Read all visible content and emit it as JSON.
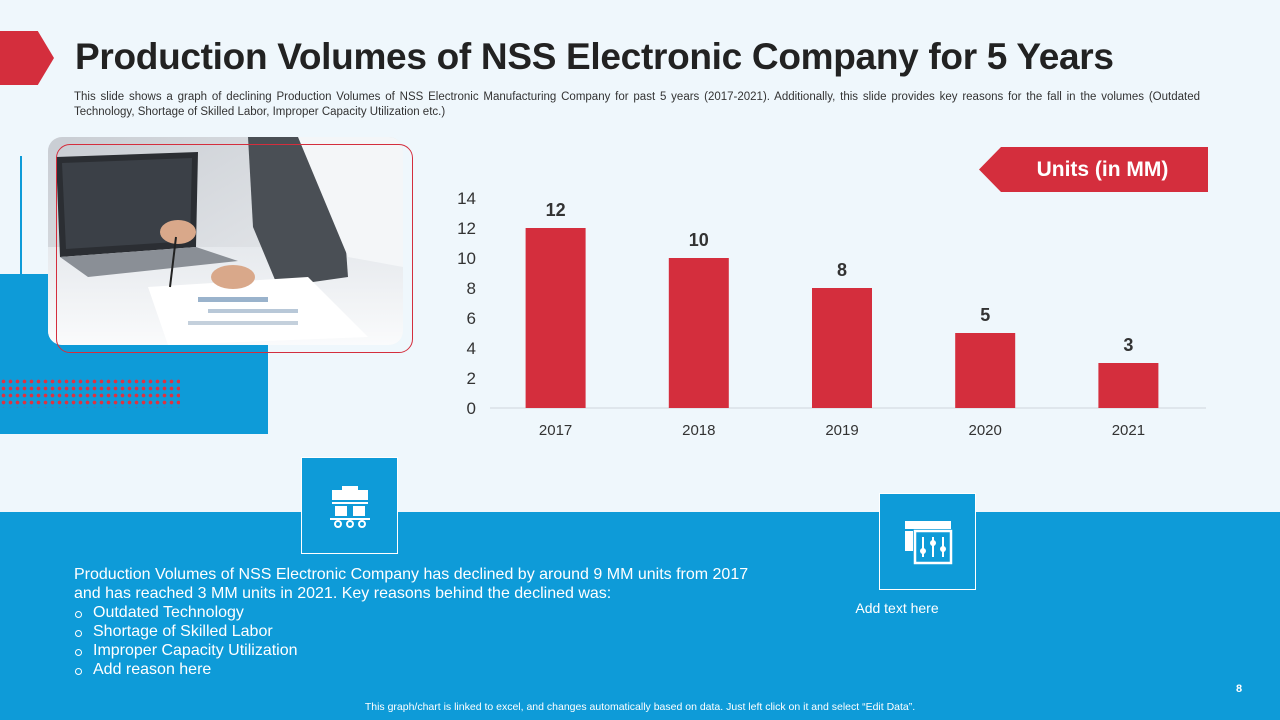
{
  "slide": {
    "title": "Production Volumes of NSS Electronic Company for 5 Years",
    "subtitle": "This slide shows a graph of declining Production Volumes of NSS Electronic Manufacturing Company for past 5 years (2017-2021). Additionally, this slide provides key reasons for the fall in the volumes (Outdated Technology, Shortage of Skilled Labor, Improper Capacity Utilization etc.)",
    "page_number": "8",
    "footer_note": "This graph/chart is linked to excel, and changes automatically based on data. Just left click on it and select “Edit Data”."
  },
  "summary": {
    "text": "Production Volumes of NSS Electronic Company has declined by around 9 MM units from 2017 and has reached 3 MM units in 2021. Key reasons behind the declined was:",
    "reasons": [
      "Outdated Technology",
      "Shortage of Skilled Labor",
      "Improper Capacity Utilization",
      "Add reason here"
    ]
  },
  "callout": {
    "add_text": "Add text here"
  },
  "icons": {
    "icon1": "factory-machine-icon",
    "icon2": "control-panel-icon"
  },
  "colors": {
    "accent_red": "#d42e3d",
    "accent_blue": "#0e9bd8",
    "background": "#eff7fc"
  },
  "chart_data": {
    "type": "bar",
    "title": "Units (in MM)",
    "categories": [
      "2017",
      "2018",
      "2019",
      "2020",
      "2021"
    ],
    "values": [
      12,
      10,
      8,
      5,
      3
    ],
    "ylim": [
      0,
      14
    ],
    "yticks": [
      "0",
      "2",
      "4",
      "6",
      "8",
      "10",
      "12",
      "14"
    ],
    "xlabel": "",
    "ylabel": "",
    "grid": false,
    "bar_color": "#d42e3d"
  }
}
